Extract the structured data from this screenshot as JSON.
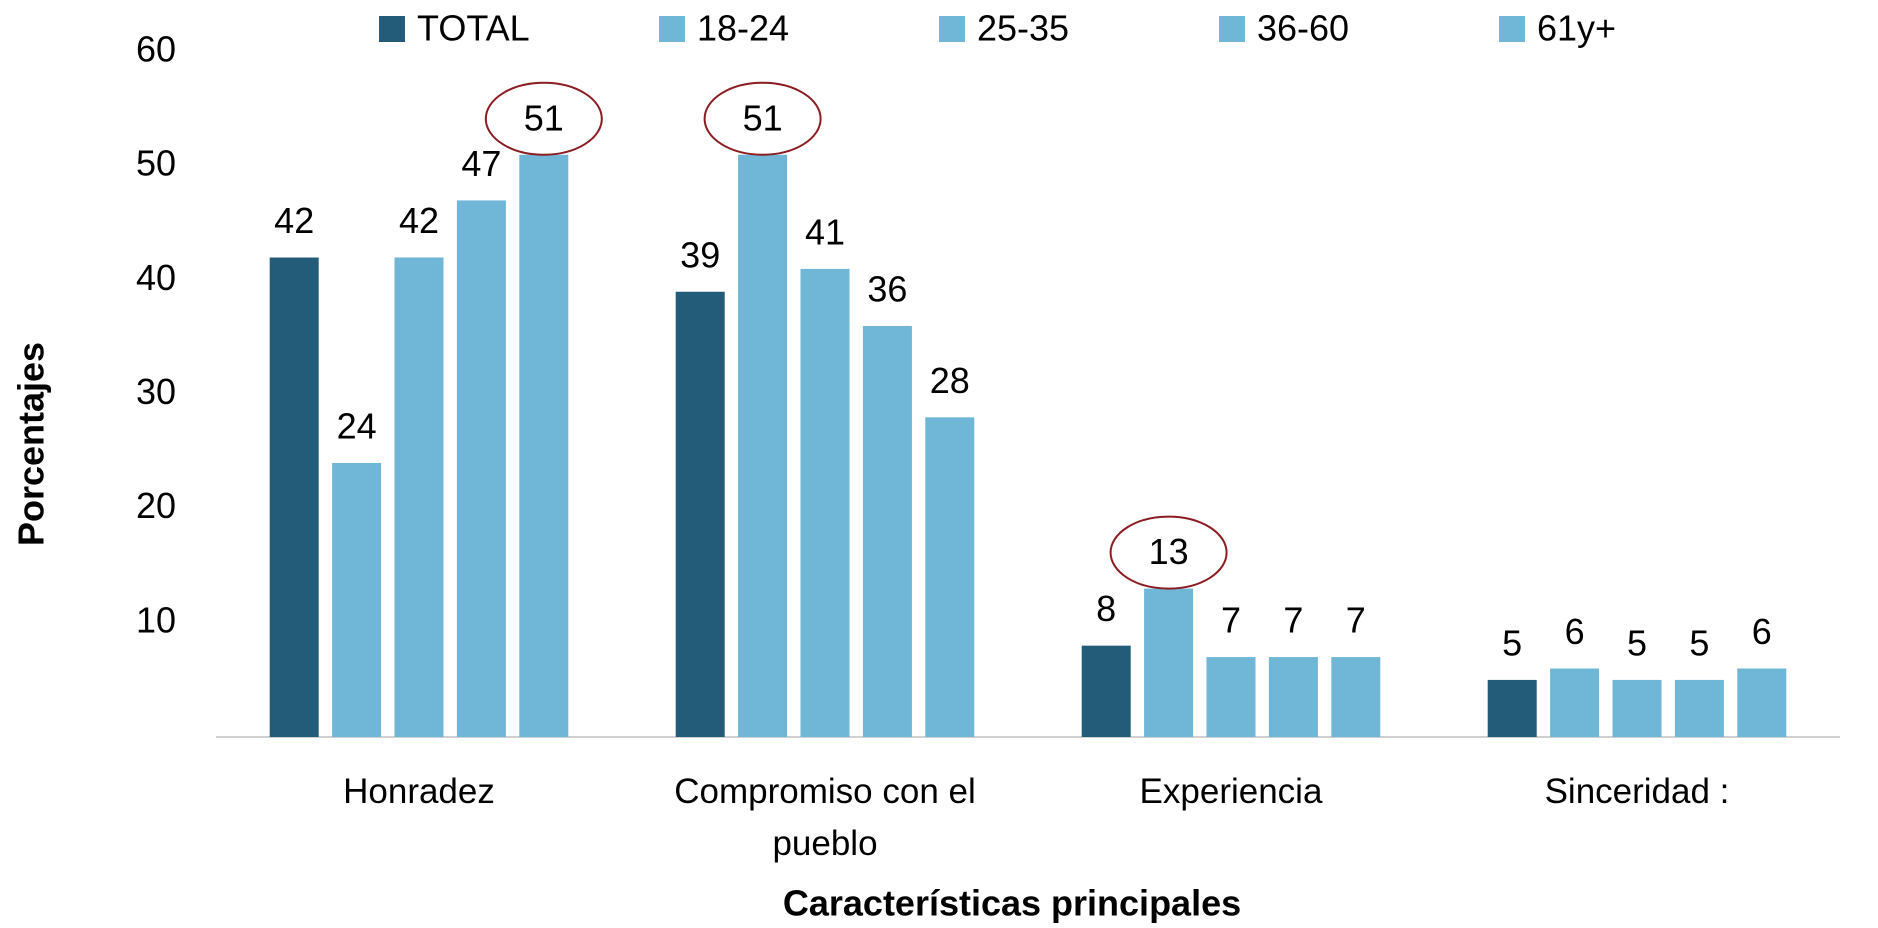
{
  "chart_data": {
    "type": "bar",
    "x_label": "Características principales",
    "y_label": "Porcentajes",
    "categories": [
      "Honradez",
      "Compromiso con el pueblo",
      "Experiencia",
      "Sinceridad :"
    ],
    "series": [
      {
        "name": "TOTAL",
        "color": "#235c78",
        "values": [
          42,
          39,
          8,
          5
        ]
      },
      {
        "name": "18-24",
        "color": "#6fb6d7",
        "values": [
          24,
          51,
          13,
          6
        ]
      },
      {
        "name": "25-35",
        "color": "#6fb6d7",
        "values": [
          42,
          41,
          7,
          5
        ]
      },
      {
        "name": "36-60",
        "color": "#6fb6d7",
        "values": [
          47,
          36,
          7,
          5
        ]
      },
      {
        "name": "61y+",
        "color": "#6fb6d7",
        "values": [
          51,
          28,
          7,
          6
        ]
      }
    ],
    "highlight": [
      [
        4,
        0
      ],
      [
        1,
        1
      ],
      [
        1,
        2
      ]
    ],
    "ylim": [
      0,
      60
    ],
    "yticks": [
      10,
      20,
      30,
      40,
      50,
      60
    ],
    "grid": false,
    "legend": "top"
  }
}
